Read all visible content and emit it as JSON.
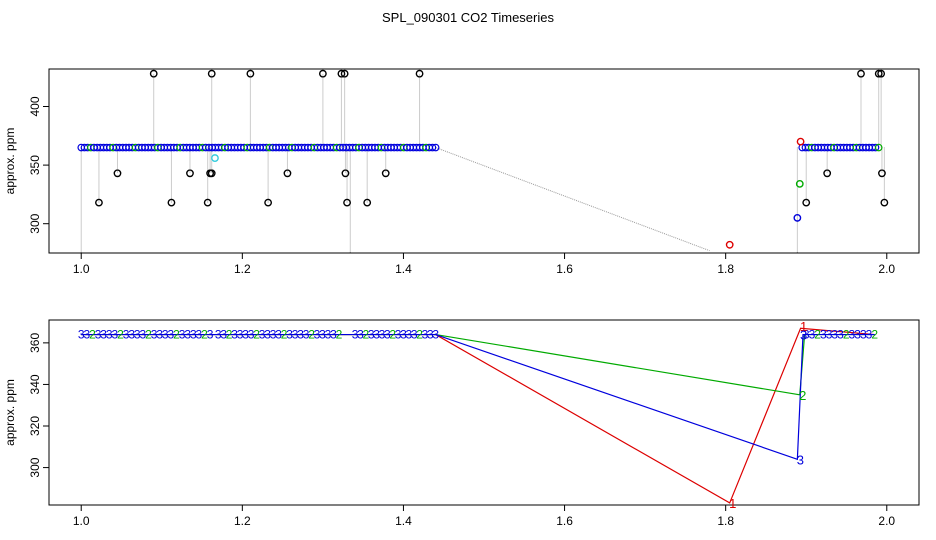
{
  "title": "SPL_090301  CO2 Timeseries",
  "colors": {
    "black": "#000000",
    "red": "#dd0000",
    "green": "#00aa00",
    "blue": "#0000dd",
    "cyan": "#33ccdd",
    "gray": "#999999"
  },
  "chart_data": [
    {
      "type": "scatter",
      "ylabel": "approx. ppm",
      "xlim": [
        0.96,
        2.04
      ],
      "ylim": [
        275,
        432
      ],
      "xticks": [
        "1.0",
        "1.2",
        "1.4",
        "1.6",
        "1.8",
        "2.0"
      ],
      "yticks": [
        "300",
        "350",
        "400"
      ],
      "dense_band": [
        {
          "x_start": 1.0,
          "x_end": 1.44,
          "y": 365
        },
        {
          "x_start": 1.895,
          "x_end": 1.99,
          "y": 365
        }
      ],
      "gray_gap_line": {
        "x": [
          1.44,
          1.78
        ],
        "y": [
          365,
          277
        ]
      },
      "series": [
        {
          "color": "black",
          "x": [
            1.09,
            1.162,
            1.21,
            1.3,
            1.323,
            1.327,
            1.42,
            1.968,
            1.99,
            1.993
          ],
          "y": [
            428,
            428,
            428,
            428,
            428,
            428,
            428,
            428,
            428,
            428
          ]
        },
        {
          "color": "black",
          "x": [
            1.022,
            1.045,
            1.112,
            1.135,
            1.157,
            1.16,
            1.162,
            1.232,
            1.256,
            1.328,
            1.33,
            1.355,
            1.378,
            1.9,
            1.926,
            1.994,
            1.997
          ],
          "y": [
            318,
            343,
            318,
            343,
            318,
            343,
            343,
            318,
            343,
            343,
            318,
            318,
            343,
            318,
            343,
            343,
            318
          ]
        },
        {
          "color": "red",
          "x": [
            1.805,
            1.893
          ],
          "y": [
            282,
            370
          ]
        },
        {
          "color": "green",
          "x": [
            1.892
          ],
          "y": [
            334
          ]
        },
        {
          "color": "blue",
          "x": [
            1.889
          ],
          "y": [
            305
          ]
        },
        {
          "color": "cyan",
          "x": [
            1.166
          ],
          "y": [
            356
          ]
        }
      ]
    },
    {
      "type": "line",
      "ylabel": "approx. ppm",
      "xlim": [
        0.96,
        2.04
      ],
      "ylim": [
        282,
        371
      ],
      "xticks": [
        "1.0",
        "1.2",
        "1.4",
        "1.6",
        "1.8",
        "2.0"
      ],
      "yticks": [
        "300",
        "320",
        "340",
        "360"
      ],
      "series": [
        {
          "name": "1",
          "color": "red",
          "x": [
            1.0,
            1.44,
            1.805,
            1.893,
            1.985
          ],
          "y": [
            364,
            364,
            283,
            367,
            364
          ]
        },
        {
          "name": "2",
          "color": "green",
          "x": [
            1.0,
            1.44,
            1.892,
            1.898,
            1.985
          ],
          "y": [
            364,
            364,
            335,
            364,
            364
          ]
        },
        {
          "name": "3",
          "color": "blue",
          "x": [
            1.0,
            1.44,
            1.889,
            1.896,
            1.985
          ],
          "y": [
            364,
            364,
            304,
            364,
            364
          ]
        }
      ],
      "point_labels": [
        {
          "text": "1",
          "color": "red",
          "x": 1.805,
          "y": 283
        },
        {
          "text": "1",
          "color": "red",
          "x": 1.893,
          "y": 368
        },
        {
          "text": "2",
          "color": "green",
          "x": 1.892,
          "y": 335
        },
        {
          "text": "3",
          "color": "blue",
          "x": 1.889,
          "y": 304
        },
        {
          "text": "3",
          "color": "blue",
          "x": 1.893,
          "y": 364
        }
      ],
      "label_runs": [
        {
          "x_start": 1.0,
          "x_end": 1.16
        },
        {
          "x_start": 1.17,
          "x_end": 1.32
        },
        {
          "x_start": 1.34,
          "x_end": 1.44
        },
        {
          "x_start": 1.9,
          "x_end": 1.985
        }
      ],
      "run_y": 364
    }
  ]
}
